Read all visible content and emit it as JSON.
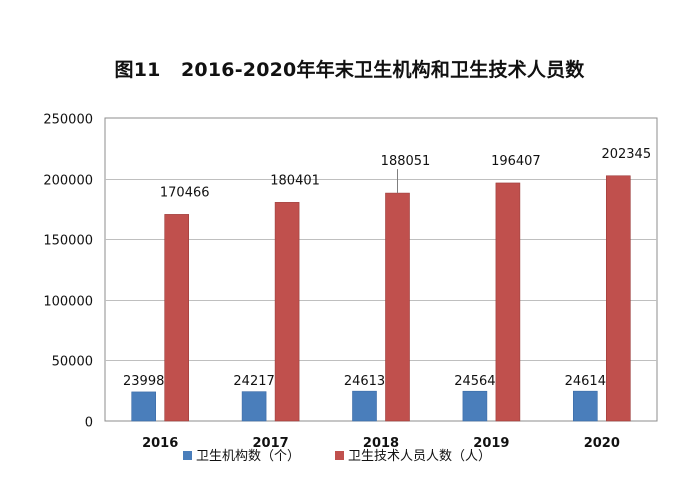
{
  "chart_data": {
    "type": "bar",
    "title": "图11   2016-2020年年末卫生机构和卫生技术人员数",
    "categories": [
      "2016",
      "2017",
      "2018",
      "2019",
      "2020"
    ],
    "series": [
      {
        "name": "卫生机构数（个）",
        "values": [
          23998,
          24217,
          24613,
          24564,
          24614
        ],
        "color": "#4A7EBB"
      },
      {
        "name": "卫生技术人员人数（人）",
        "values": [
          170466,
          180401,
          188051,
          196407,
          202345
        ],
        "color": "#C0504D"
      }
    ],
    "ylim": [
      0,
      250000
    ],
    "yticks": [
      0,
      50000,
      100000,
      150000,
      200000,
      250000
    ],
    "grid": true,
    "legend": "bottom"
  }
}
